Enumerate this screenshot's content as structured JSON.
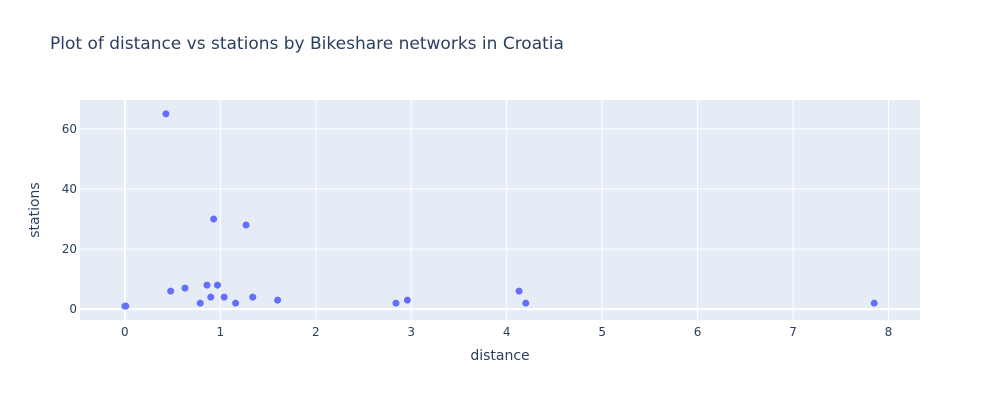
{
  "chart_data": {
    "type": "scatter",
    "title": "Plot of distance vs stations by Bikeshare networks in Croatia",
    "xlabel": "distance",
    "ylabel": "stations",
    "xlim": [
      -0.47,
      8.33
    ],
    "ylim": [
      -3.6,
      69.6
    ],
    "xticks": [
      0,
      1,
      2,
      3,
      4,
      5,
      6,
      7,
      8
    ],
    "yticks": [
      0,
      20,
      40,
      60
    ],
    "grid": true,
    "colors": {
      "marker": "#636efa",
      "plot_bg": "#e5ecf6",
      "grid": "#ffffff",
      "text": "#2a3f5f"
    },
    "series": [
      {
        "points": [
          {
            "x": 0.0,
            "y": 1
          },
          {
            "x": 0.01,
            "y": 1
          },
          {
            "x": 0.43,
            "y": 65
          },
          {
            "x": 0.48,
            "y": 6
          },
          {
            "x": 0.63,
            "y": 7
          },
          {
            "x": 0.79,
            "y": 2
          },
          {
            "x": 0.86,
            "y": 8
          },
          {
            "x": 0.9,
            "y": 4
          },
          {
            "x": 0.93,
            "y": 30
          },
          {
            "x": 0.97,
            "y": 8
          },
          {
            "x": 1.04,
            "y": 4
          },
          {
            "x": 1.16,
            "y": 2
          },
          {
            "x": 1.27,
            "y": 28
          },
          {
            "x": 1.34,
            "y": 4
          },
          {
            "x": 1.6,
            "y": 3
          },
          {
            "x": 2.84,
            "y": 2
          },
          {
            "x": 2.96,
            "y": 3
          },
          {
            "x": 4.13,
            "y": 6
          },
          {
            "x": 4.2,
            "y": 2
          },
          {
            "x": 7.85,
            "y": 2
          }
        ]
      }
    ]
  }
}
